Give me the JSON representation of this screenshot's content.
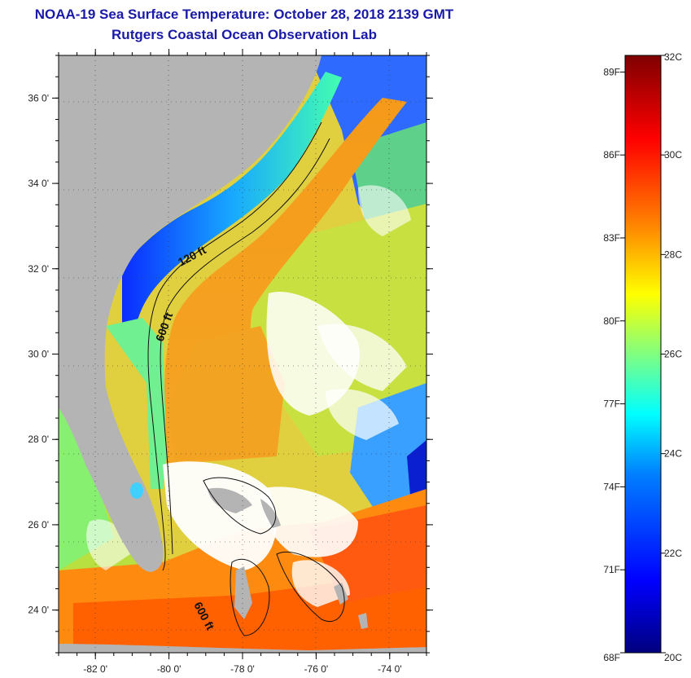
{
  "header": {
    "title": "NOAA-19 Sea Surface Temperature:  October 28, 2018 2139 GMT",
    "subtitle": "Rutgers Coastal Ocean Observation Lab"
  },
  "axes": {
    "latitude_labels": [
      "36 0'",
      "34 0'",
      "32 0'",
      "30 0'",
      "28 0'",
      "26 0'",
      "24 0'"
    ],
    "latitude_values": [
      36,
      34,
      32,
      30,
      28,
      26,
      24
    ],
    "longitude_labels": [
      "-82 0'",
      "-80 0'",
      "-78 0'",
      "-76 0'",
      "-74 0'"
    ],
    "longitude_values": [
      -82,
      -80,
      -78,
      -76,
      -74
    ],
    "lat_range": [
      23,
      37
    ],
    "lon_range": [
      -83,
      -73
    ]
  },
  "contours": {
    "shelf_label": "120 ft",
    "slope_label": "600 ft",
    "bahamas_label": "600 ft"
  },
  "colorbar": {
    "fahrenheit_labels": [
      "89F",
      "86F",
      "83F",
      "80F",
      "77F",
      "74F",
      "71F",
      "68F"
    ],
    "fahrenheit_values": [
      89,
      86,
      83,
      80,
      77,
      74,
      71,
      68
    ],
    "celsius_labels": [
      "32C",
      "30C",
      "28C",
      "26C",
      "24C",
      "22C",
      "20C"
    ],
    "celsius_values": [
      32,
      30,
      28,
      26,
      24,
      22,
      20
    ],
    "range_celsius": [
      20,
      32
    ],
    "colors": [
      "#00007f",
      "#0000ff",
      "#0080ff",
      "#00ffff",
      "#80ff80",
      "#ffff00",
      "#ff8000",
      "#ff0000",
      "#7f0000"
    ]
  },
  "map_colors": {
    "land": "#b4b4b4",
    "cloud": "#ffffff",
    "gulf_stream": "#f5a020",
    "warm_south": "#ff6a00",
    "shelf_cold": "#1040ff"
  }
}
